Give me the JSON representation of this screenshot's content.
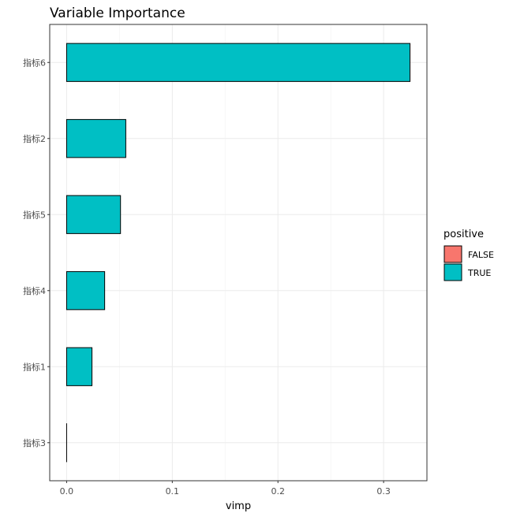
{
  "chart_data": {
    "type": "bar",
    "orientation": "horizontal",
    "title": "Variable Importance",
    "xlabel": "vimp",
    "ylabel": "",
    "categories": [
      "指标6",
      "指标2",
      "指标5",
      "指标4",
      "指标1",
      "指标3"
    ],
    "values": [
      0.325,
      0.056,
      0.051,
      0.036,
      0.024,
      0.0
    ],
    "positive": [
      "TRUE",
      "TRUE",
      "TRUE",
      "TRUE",
      "TRUE",
      "TRUE"
    ],
    "xlim": [
      -0.016,
      0.341
    ],
    "xticks": [
      0.0,
      0.1,
      0.2,
      0.3
    ],
    "xtick_labels": [
      "0.0",
      "0.1",
      "0.2",
      "0.3"
    ],
    "grid": true,
    "legend": {
      "title": "positive",
      "position": "right",
      "entries": [
        {
          "label": "FALSE",
          "color": "#F8766D"
        },
        {
          "label": "TRUE",
          "color": "#00BFC4"
        }
      ]
    },
    "colors": {
      "FALSE": "#F8766D",
      "TRUE": "#00BFC4"
    }
  }
}
